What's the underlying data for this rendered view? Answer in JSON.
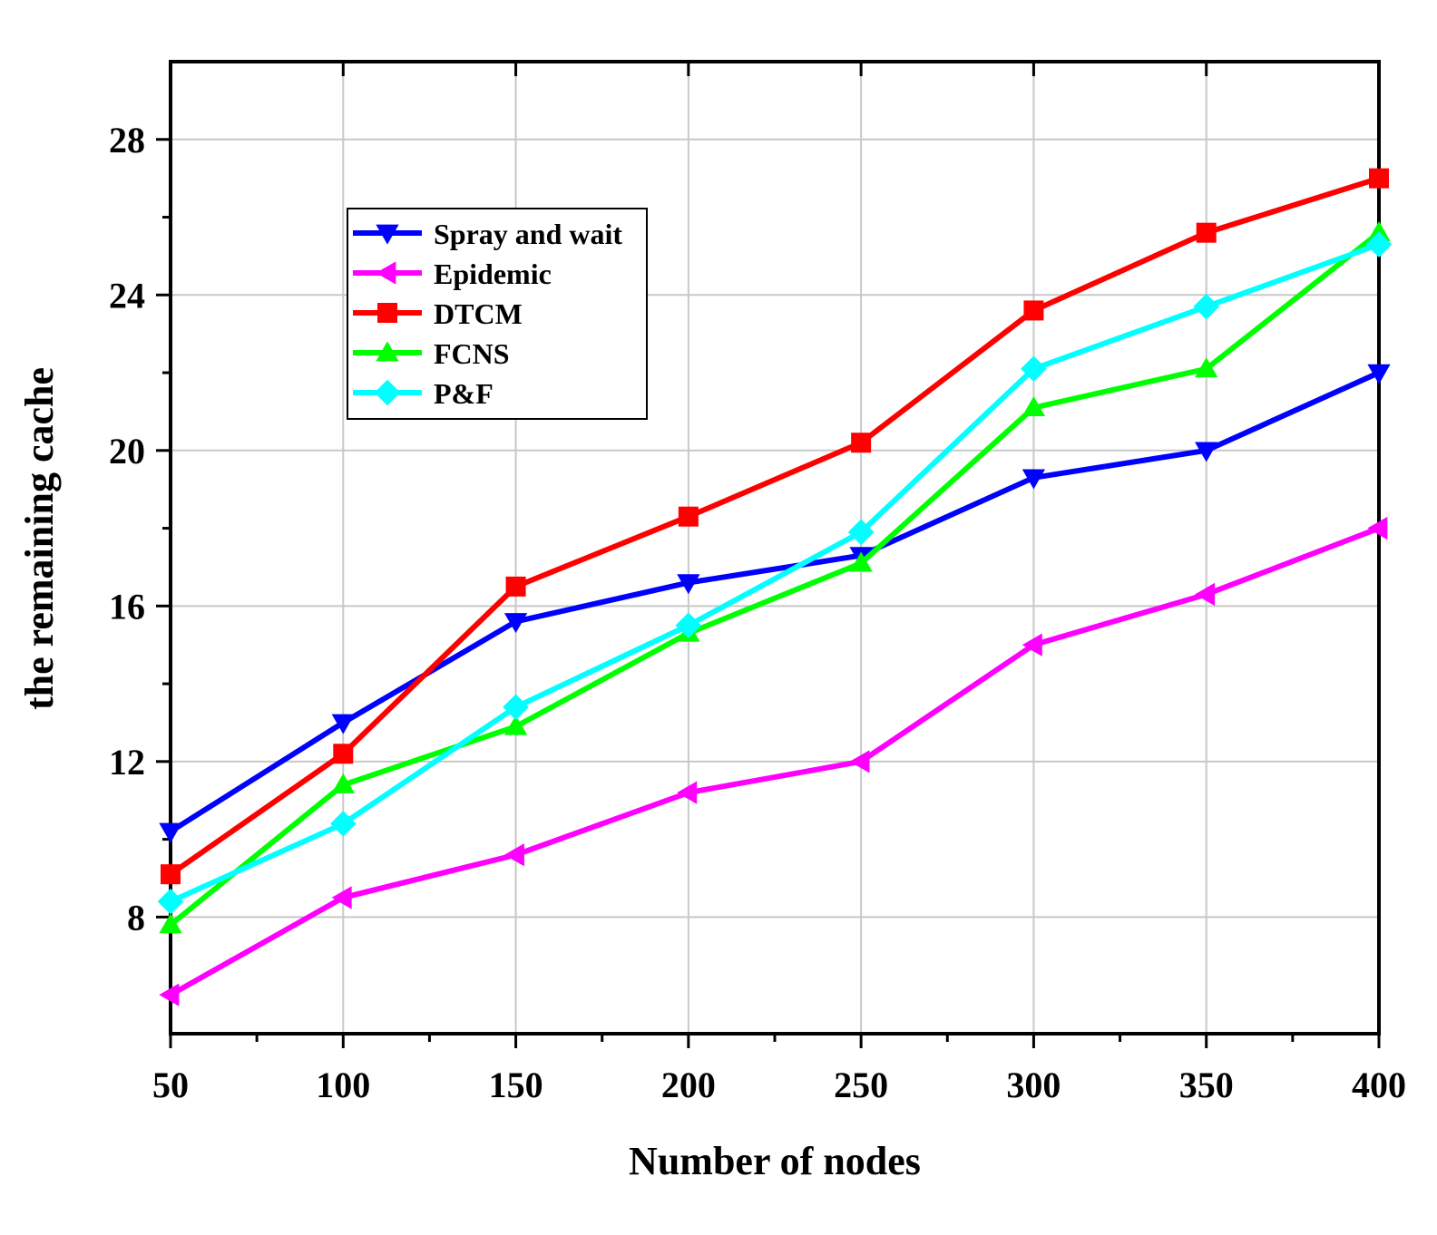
{
  "chart_data": {
    "type": "line",
    "title": "",
    "xlabel": "Number of nodes",
    "ylabel": "the remaining cache",
    "xlim": [
      50,
      400
    ],
    "ylim": [
      5,
      30
    ],
    "x_ticks": [
      50,
      100,
      150,
      200,
      250,
      300,
      350,
      400
    ],
    "y_ticks": [
      8,
      12,
      16,
      20,
      24,
      28
    ],
    "grid": true,
    "legend_position": "upper-left",
    "series": [
      {
        "name": "Spray and wait",
        "color": "#0000ff",
        "marker": "triangle-down",
        "x": [
          50,
          100,
          150,
          200,
          250,
          300,
          350,
          400
        ],
        "y": [
          10.2,
          13.0,
          15.6,
          16.6,
          17.3,
          19.3,
          20.0,
          22.0
        ]
      },
      {
        "name": "Epidemic",
        "color": "#ff00ff",
        "marker": "triangle-left",
        "x": [
          50,
          100,
          150,
          200,
          250,
          300,
          350,
          400
        ],
        "y": [
          6.0,
          8.5,
          9.6,
          11.2,
          12.0,
          15.0,
          16.3,
          18.0
        ]
      },
      {
        "name": "DTCM",
        "color": "#ff0000",
        "marker": "square",
        "x": [
          50,
          100,
          150,
          200,
          250,
          300,
          350,
          400
        ],
        "y": [
          9.1,
          12.2,
          16.5,
          18.3,
          20.2,
          23.6,
          25.6,
          27.0
        ]
      },
      {
        "name": "FCNS",
        "color": "#00ff00",
        "marker": "triangle-up",
        "x": [
          50,
          100,
          150,
          200,
          250,
          300,
          350,
          400
        ],
        "y": [
          7.8,
          11.4,
          12.9,
          15.3,
          17.1,
          21.1,
          22.1,
          25.6
        ]
      },
      {
        "name": "P&F",
        "color": "#00ffff",
        "marker": "diamond",
        "x": [
          50,
          100,
          150,
          200,
          250,
          300,
          350,
          400
        ],
        "y": [
          8.4,
          10.4,
          13.4,
          15.5,
          17.9,
          22.1,
          23.7,
          25.3
        ]
      }
    ]
  }
}
